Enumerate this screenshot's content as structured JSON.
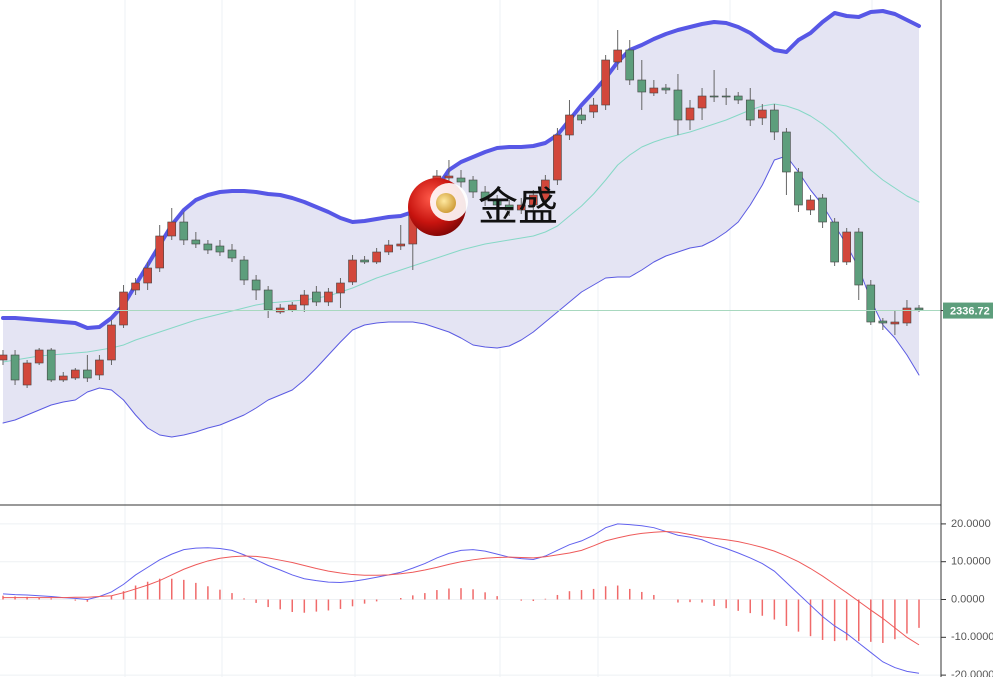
{
  "chart_data": [
    {
      "type": "candlestick",
      "watermark": "金盛",
      "ylim": [
        2239.5,
        2492
      ],
      "up_color": "#d2473b",
      "down_color": "#5d9e7c",
      "band_fill": "#e4e4f3",
      "open": [
        2312,
        2314.5,
        2299.5,
        2310.5,
        2317,
        2302,
        2303,
        2307,
        2304.5,
        2312,
        2329.5,
        2347,
        2350.5,
        2358,
        2374,
        2381,
        2372,
        2370,
        2369,
        2367,
        2362,
        2352,
        2347,
        2336,
        2337,
        2339.5,
        2346,
        2341,
        2345.5,
        2351,
        2362,
        2361,
        2366,
        2369,
        2370,
        2384.5,
        2394.5,
        2403,
        2403,
        2402,
        2396,
        2392,
        2389.5,
        2387,
        2389.5,
        2392,
        2402,
        2424.5,
        2434.5,
        2436,
        2439.5,
        2461,
        2467,
        2452,
        2445.5,
        2448,
        2447,
        2432,
        2438,
        2444,
        2444,
        2444,
        2442,
        2433,
        2437,
        2426,
        2406,
        2387,
        2393,
        2381,
        2361,
        2376,
        2349.5,
        2331.5,
        2330,
        2330.5,
        2338
      ],
      "high": [
        2317,
        2317,
        2312,
        2318,
        2318,
        2306,
        2308,
        2314.5,
        2314.5,
        2332,
        2349.5,
        2353,
        2361,
        2379.5,
        2388,
        2386,
        2376,
        2372,
        2372,
        2370,
        2364,
        2354.5,
        2349,
        2340,
        2341,
        2347,
        2349,
        2348,
        2353,
        2364.5,
        2364,
        2368,
        2372,
        2379.5,
        2389.5,
        2397,
        2407,
        2412,
        2407,
        2404,
        2399,
        2394.5,
        2392,
        2393,
        2397,
        2404.5,
        2428,
        2442,
        2438,
        2443,
        2464.5,
        2477,
        2472,
        2462,
        2452,
        2450,
        2455,
        2442,
        2448,
        2457,
        2448,
        2446,
        2448,
        2440,
        2440,
        2428,
        2408,
        2394.5,
        2395,
        2383,
        2378,
        2378,
        2352,
        2333,
        2337,
        2342,
        2339.5
      ],
      "low": [
        2309.5,
        2299.5,
        2298,
        2309.5,
        2301,
        2301,
        2302,
        2301,
        2302,
        2309.5,
        2328,
        2344.5,
        2347,
        2356,
        2372,
        2369.5,
        2368,
        2365,
        2364,
        2361,
        2349.5,
        2342,
        2333,
        2335,
        2336,
        2336,
        2339,
        2339,
        2338,
        2349.5,
        2360,
        2360,
        2364.5,
        2367,
        2357,
        2382,
        2392,
        2401,
        2398,
        2393,
        2389,
        2386,
        2384,
        2385,
        2387,
        2389.5,
        2399.5,
        2422,
        2430,
        2433,
        2437,
        2457,
        2449.5,
        2437,
        2444,
        2445,
        2424.5,
        2427,
        2432,
        2441,
        2439.5,
        2440,
        2429,
        2429.5,
        2422,
        2394.5,
        2386,
        2384.5,
        2378,
        2359,
        2359.5,
        2342,
        2329.5,
        2327,
        2324.5,
        2329,
        2336
      ],
      "close": [
        2314.5,
        2302,
        2310.5,
        2317,
        2302,
        2304,
        2307,
        2303,
        2312,
        2329.5,
        2346,
        2350.5,
        2358,
        2374,
        2381,
        2372,
        2370,
        2367,
        2366,
        2363,
        2352,
        2347,
        2337,
        2338,
        2339.5,
        2344.5,
        2341,
        2346,
        2350.5,
        2362,
        2361,
        2366,
        2369.5,
        2370,
        2384.5,
        2394.5,
        2404,
        2404,
        2401,
        2396,
        2392,
        2389.5,
        2387,
        2389.5,
        2394.5,
        2402,
        2424.5,
        2434.5,
        2432,
        2439.5,
        2462,
        2467,
        2452,
        2446,
        2448,
        2447,
        2432,
        2438,
        2444,
        2443.5,
        2443.5,
        2442,
        2432,
        2437,
        2426,
        2406,
        2389.5,
        2392,
        2381,
        2361,
        2376,
        2349.5,
        2331,
        2330.5,
        2331,
        2338,
        2337
      ],
      "overlays": [
        {
          "color": "#5757e6",
          "width": 4,
          "values": [
            2333,
            2333,
            2332.5,
            2332,
            2331.5,
            2331,
            2330.5,
            2328,
            2328.5,
            2333,
            2339.5,
            2349.5,
            2359.5,
            2369.5,
            2379.5,
            2387,
            2392,
            2394.5,
            2396,
            2396.5,
            2396.5,
            2396,
            2395,
            2394.5,
            2393,
            2391,
            2388.5,
            2386,
            2383,
            2381,
            2381.5,
            2382.5,
            2383.5,
            2384,
            2386,
            2392,
            2398,
            2407,
            2411,
            2413.5,
            2416,
            2418,
            2418.5,
            2418.5,
            2419,
            2420.5,
            2424.5,
            2432,
            2439.5,
            2446,
            2453,
            2461,
            2467,
            2469.5,
            2472.5,
            2475,
            2477,
            2478.5,
            2480,
            2481,
            2480.5,
            2478.5,
            2475.5,
            2471,
            2467,
            2466,
            2472,
            2475.5,
            2481,
            2485.5,
            2484,
            2483.5,
            2486,
            2486.5,
            2485,
            2482,
            2479
          ]
        },
        {
          "color": "#86d8c6",
          "width": 1,
          "values": [
            2311,
            2312,
            2313,
            2314,
            2314.5,
            2315,
            2315.5,
            2316,
            2317,
            2318,
            2319.5,
            2322,
            2324,
            2326,
            2328,
            2330,
            2332,
            2333.5,
            2335,
            2336.5,
            2338,
            2339.5,
            2340.5,
            2341,
            2341.5,
            2342,
            2343,
            2344,
            2346,
            2348,
            2350.5,
            2353,
            2355,
            2357,
            2359,
            2361,
            2363,
            2365,
            2367,
            2368.5,
            2370,
            2371,
            2372,
            2373,
            2374,
            2376,
            2379,
            2384,
            2389,
            2395,
            2402,
            2409.5,
            2414.5,
            2418.5,
            2421,
            2423,
            2424.5,
            2426,
            2428,
            2430,
            2432,
            2434.5,
            2437,
            2439,
            2440,
            2439,
            2437,
            2434,
            2430,
            2425,
            2419,
            2413,
            2407,
            2402,
            2398,
            2394,
            2391
          ]
        },
        {
          "color": "#5a5ae2",
          "width": 1,
          "values": [
            2280.5,
            2282,
            2284.5,
            2287,
            2289.5,
            2291,
            2292,
            2296,
            2298,
            2297,
            2292,
            2284.5,
            2278,
            2274.5,
            2273.5,
            2274.5,
            2276,
            2278,
            2279.5,
            2282,
            2284.5,
            2288,
            2292,
            2294.5,
            2297,
            2302,
            2308,
            2314.5,
            2321,
            2327,
            2329.5,
            2330.5,
            2331,
            2331,
            2331,
            2330,
            2328,
            2326,
            2323,
            2319.5,
            2318.5,
            2318,
            2319,
            2322,
            2326,
            2331,
            2336,
            2341,
            2346,
            2349.5,
            2353,
            2353.5,
            2353.5,
            2357,
            2361,
            2364,
            2366,
            2368,
            2369,
            2372,
            2376,
            2381,
            2389.5,
            2399.5,
            2412,
            2414,
            2406,
            2397,
            2389.5,
            2379.5,
            2369.5,
            2358,
            2342,
            2329.5,
            2323,
            2314.5,
            2304.5
          ]
        }
      ],
      "last_price": 2336.72,
      "last_price_color": "#5d9e7c"
    },
    {
      "type": "macd",
      "ylim": [
        -20.5,
        25
      ],
      "yticks": [
        {
          "value": 20,
          "label": "20.0000"
        },
        {
          "value": 10,
          "label": "10.0000"
        },
        {
          "value": 0,
          "label": "0.0000"
        },
        {
          "value": -10,
          "label": "-10.0000"
        },
        {
          "value": -20,
          "label": "-20.0000"
        }
      ],
      "grid": true,
      "histogram": {
        "color": "#f06a6a",
        "values": [
          1.0,
          0.8,
          0.7,
          0.5,
          0.3,
          0,
          -0.3,
          -0.6,
          0,
          1.0,
          2.2,
          3.7,
          4.7,
          5.5,
          5.5,
          5.2,
          4.4,
          3.5,
          2.6,
          1.7,
          0.3,
          -0.9,
          -2.0,
          -2.6,
          -3.3,
          -3.5,
          -3.2,
          -2.9,
          -2.5,
          -1.8,
          -1.1,
          -0.5,
          0,
          0.4,
          1.1,
          1.7,
          2.5,
          2.9,
          3.0,
          2.7,
          1.9,
          0.9,
          0,
          -0.3,
          -0.4,
          0.2,
          1.2,
          2.2,
          2.5,
          2.8,
          3.5,
          3.7,
          2.8,
          2.0,
          1.2,
          0,
          -0.8,
          -0.7,
          -0.8,
          -1.7,
          -2.3,
          -3.0,
          -3.6,
          -4.3,
          -5.3,
          -7.0,
          -8.5,
          -9.7,
          -10.7,
          -11.0,
          -10.8,
          -11.0,
          -11.2,
          -11.5,
          -10.5,
          -9.0,
          -7.5
        ]
      },
      "series": [
        {
          "color": "#6262ee",
          "values": [
            1.5,
            1.3,
            1.2,
            1.0,
            0.8,
            0.5,
            0.3,
            0.0,
            0.8,
            2.0,
            4.0,
            6.5,
            8.5,
            10.5,
            12.0,
            13.2,
            13.6,
            13.7,
            13.5,
            13.0,
            11.8,
            10.5,
            9.0,
            7.8,
            6.5,
            5.5,
            5.0,
            4.6,
            4.5,
            4.8,
            5.3,
            5.9,
            6.5,
            7.2,
            8.3,
            9.5,
            11.0,
            12.2,
            13.0,
            13.2,
            12.8,
            12.0,
            11.2,
            10.8,
            10.6,
            11.5,
            13.0,
            14.5,
            15.5,
            17.0,
            19.0,
            20.0,
            19.8,
            19.5,
            19.0,
            18.0,
            17.0,
            16.5,
            15.8,
            14.5,
            13.5,
            12.3,
            11.0,
            9.5,
            7.5,
            4.5,
            1.5,
            -1.5,
            -4.5,
            -7.0,
            -9.0,
            -11.5,
            -14.0,
            -16.5,
            -18.0,
            -19.0,
            -19.5
          ]
        },
        {
          "color": "#ee5a5a",
          "values": [
            0.5,
            0.5,
            0.5,
            0.5,
            0.5,
            0.5,
            0.6,
            0.6,
            0.8,
            1.0,
            1.8,
            2.8,
            3.8,
            5.0,
            6.5,
            8.0,
            9.2,
            10.2,
            10.9,
            11.3,
            11.5,
            11.4,
            11.0,
            10.4,
            9.8,
            9.0,
            8.2,
            7.5,
            7.0,
            6.6,
            6.4,
            6.4,
            6.5,
            6.8,
            7.2,
            7.8,
            8.5,
            9.3,
            10.0,
            10.5,
            10.9,
            11.1,
            11.2,
            11.1,
            11.0,
            11.3,
            11.8,
            12.3,
            13.0,
            14.2,
            15.5,
            16.3,
            17.0,
            17.5,
            17.8,
            18.0,
            17.8,
            17.2,
            16.6,
            16.2,
            15.8,
            15.3,
            14.6,
            13.8,
            12.8,
            11.5,
            10.0,
            8.2,
            6.2,
            4.0,
            1.8,
            -0.5,
            -2.8,
            -5.0,
            -7.5,
            -10.0,
            -12.0
          ]
        }
      ]
    }
  ]
}
